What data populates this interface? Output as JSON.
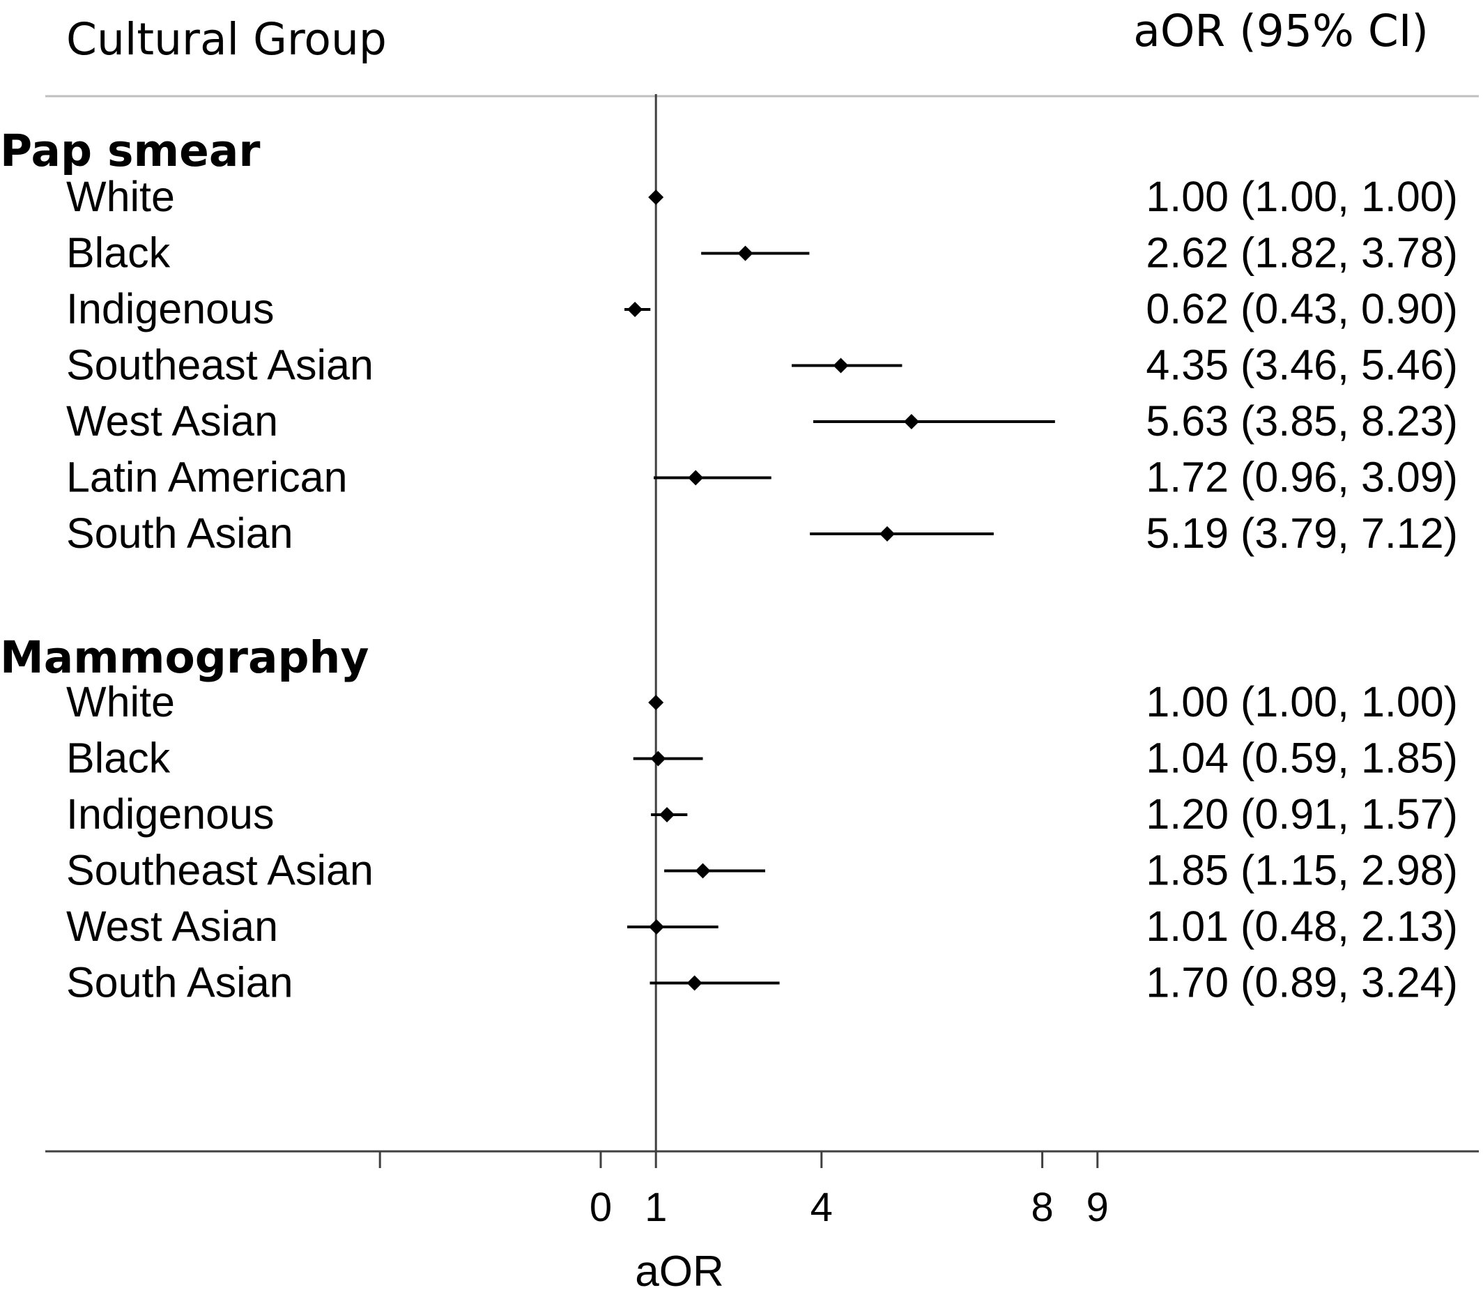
{
  "chart_data": {
    "type": "forest",
    "column_headers": {
      "group": "Cultural Group",
      "estimate": "aOR (95% CI)"
    },
    "xlabel": "aOR",
    "x_ticks": [
      "0",
      "1",
      "4",
      "8",
      "9"
    ],
    "x_tick_values": [
      0,
      1,
      4,
      8,
      9
    ],
    "xlim": [
      -4,
      15
    ],
    "reference_line": 1,
    "sections": [
      {
        "name": "Pap smear",
        "rows": [
          {
            "group": "White",
            "aor": 1.0,
            "lower": 1.0,
            "upper": 1.0,
            "label": "1.00 (1.00, 1.00)"
          },
          {
            "group": "Black",
            "aor": 2.62,
            "lower": 1.82,
            "upper": 3.78,
            "label": "2.62 (1.82, 3.78)"
          },
          {
            "group": "Indigenous",
            "aor": 0.62,
            "lower": 0.43,
            "upper": 0.9,
            "label": "0.62 (0.43, 0.90)"
          },
          {
            "group": "Southeast Asian",
            "aor": 4.35,
            "lower": 3.46,
            "upper": 5.46,
            "label": "4.35 (3.46, 5.46)"
          },
          {
            "group": "West Asian",
            "aor": 5.63,
            "lower": 3.85,
            "upper": 8.23,
            "label": "5.63 (3.85, 8.23)"
          },
          {
            "group": "Latin American",
            "aor": 1.72,
            "lower": 0.96,
            "upper": 3.09,
            "label": "1.72 (0.96, 3.09)"
          },
          {
            "group": "South Asian",
            "aor": 5.19,
            "lower": 3.79,
            "upper": 7.12,
            "label": "5.19 (3.79, 7.12)"
          }
        ]
      },
      {
        "name": "Mammography",
        "rows": [
          {
            "group": "White",
            "aor": 1.0,
            "lower": 1.0,
            "upper": 1.0,
            "label": "1.00 (1.00, 1.00)"
          },
          {
            "group": "Black",
            "aor": 1.04,
            "lower": 0.59,
            "upper": 1.85,
            "label": "1.04 (0.59, 1.85)"
          },
          {
            "group": "Indigenous",
            "aor": 1.2,
            "lower": 0.91,
            "upper": 1.57,
            "label": "1.20 (0.91, 1.57)"
          },
          {
            "group": "Southeast Asian",
            "aor": 1.85,
            "lower": 1.15,
            "upper": 2.98,
            "label": "1.85 (1.15, 2.98)"
          },
          {
            "group": "West Asian",
            "aor": 1.01,
            "lower": 0.48,
            "upper": 2.13,
            "label": "1.01 (0.48, 2.13)"
          },
          {
            "group": "South Asian",
            "aor": 1.7,
            "lower": 0.89,
            "upper": 3.24,
            "label": "1.70 (0.89, 3.24)"
          }
        ]
      }
    ],
    "colors": {
      "ink": "#000000",
      "rule": "#bfbfbf",
      "axis": "#404040"
    }
  }
}
